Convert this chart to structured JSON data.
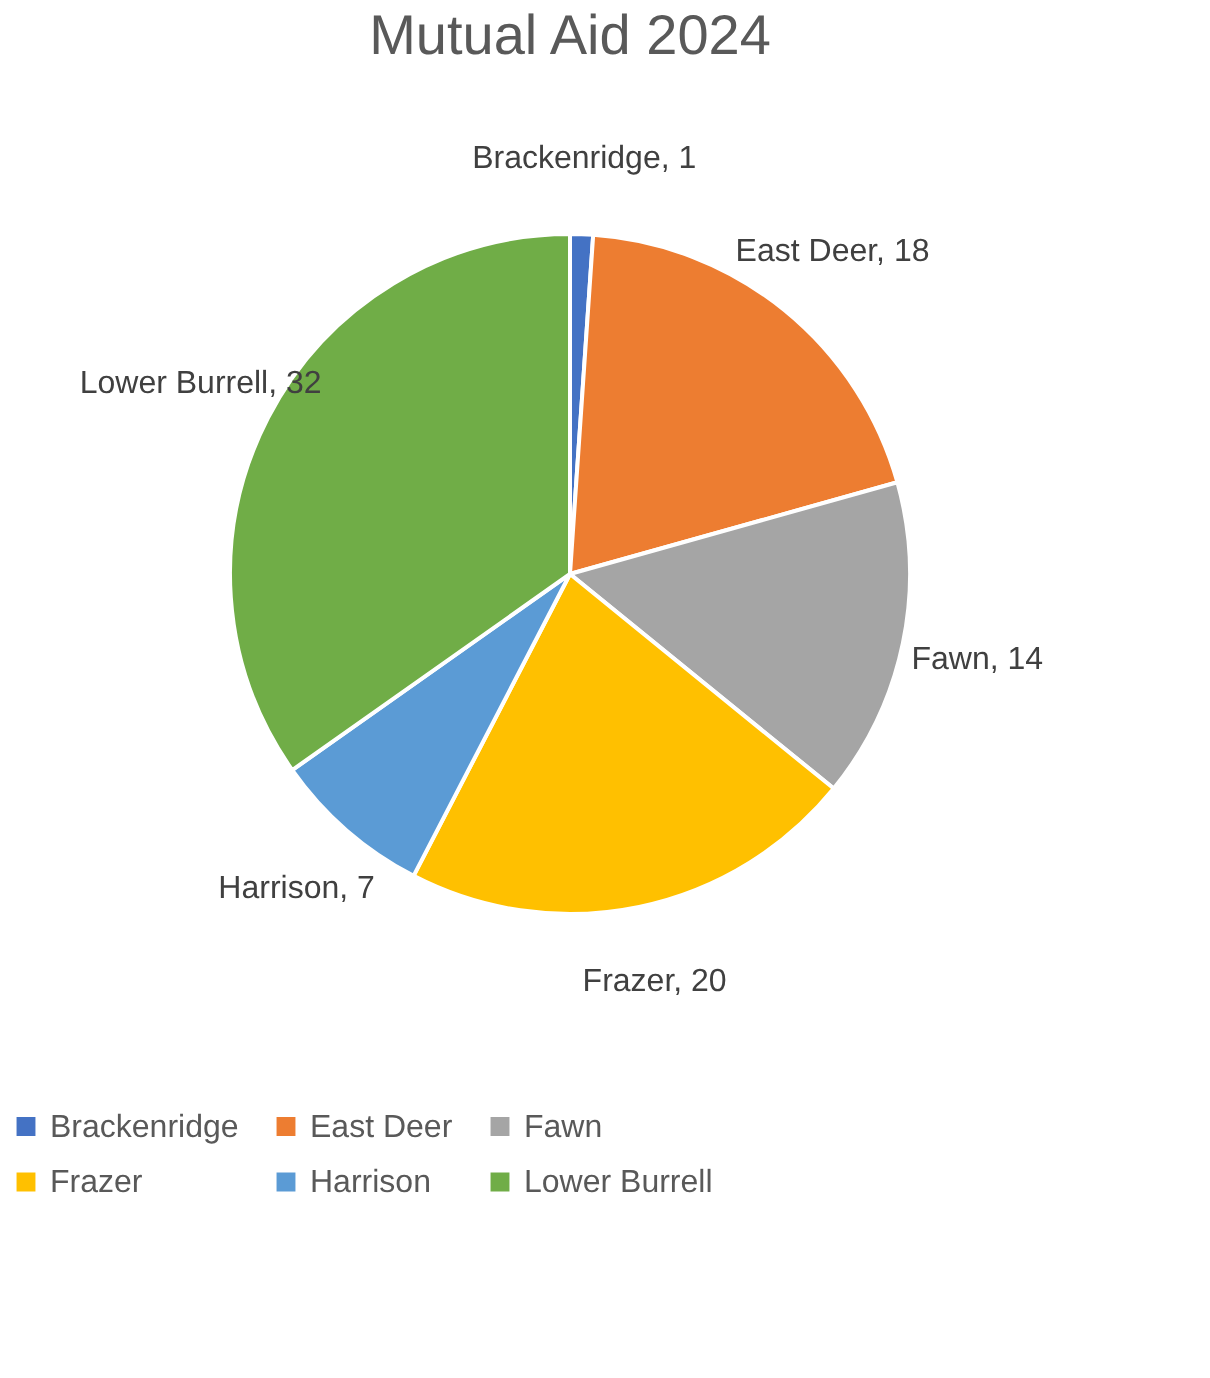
{
  "chart_data": {
    "type": "pie",
    "title": "Mutual Aid 2024",
    "categories": [
      "Brackenridge",
      "East Deer",
      "Fawn",
      "Frazer",
      "Harrison",
      "Lower Burrell"
    ],
    "values": [
      1,
      18,
      14,
      20,
      7,
      32
    ],
    "colors": [
      "#4472c4",
      "#ed7d31",
      "#a5a5a5",
      "#ffc000",
      "#5b9bd5",
      "#70ad47"
    ],
    "value_labels": [
      "Brackenridge, 1",
      "East Deer, 18",
      "Fawn, 14",
      "Frazer, 20",
      "Harrison, 7",
      "Lower Burrell, 32"
    ],
    "legend": "bottom"
  }
}
